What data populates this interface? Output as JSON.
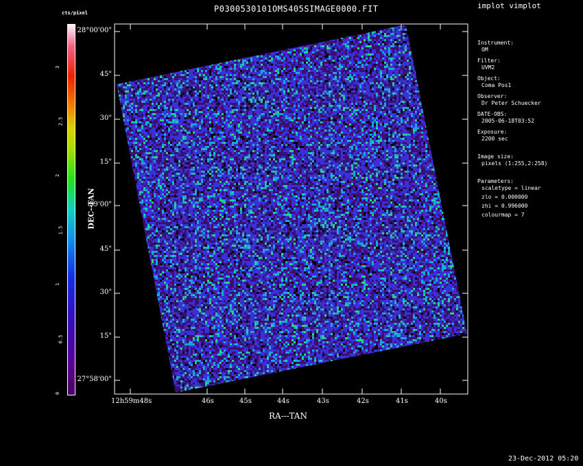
{
  "header": {
    "title": "P0300530101OMS405SIMAGE0000.FIT",
    "app_name": "implot vimplot"
  },
  "colorbar": {
    "unit_label": "cts/pixel",
    "ticks": [
      "0",
      "0.5",
      "1",
      "1.5",
      "2",
      "2.5",
      "3"
    ]
  },
  "axes": {
    "xlabel": "RA---TAN",
    "ylabel": "DEC--TAN",
    "x_ticks": [
      "12h59m48s",
      "46s",
      "45s",
      "44s",
      "43s",
      "42s",
      "41s",
      "40s"
    ],
    "y_ticks": [
      "28°00'00\"",
      "45\"",
      "30\"",
      "15\"",
      "59'00\"",
      "45\"",
      "30\"",
      "15\"",
      "27°58'00\""
    ]
  },
  "info": {
    "instrument_label": "Instrument:",
    "instrument": "OM",
    "filter_label": "Filter:",
    "filter": "UVM2",
    "object_label": "Object:",
    "object": "Coma Pos1",
    "observer_label": "Observer:",
    "observer": "Dr Peter Schuecker",
    "date_label": "DATE-OBS:",
    "date": "2005-06-18T03:52",
    "exposure_label": "Exposure:",
    "exposure": "2200 sec",
    "image_size_label": "Image size:",
    "image_size": "pixels (1:255,2:258)",
    "parameters_label": "Parameters:",
    "scaletype": "scaletype = linear",
    "zlo": "zlo = 0.000000",
    "zhi": "zhi = 0.996000",
    "colourmap": "colourmap =   7"
  },
  "footer": {
    "timestamp": "23-Dec-2012 05:20"
  },
  "colors": {
    "background": "#000000",
    "foreground": "#ffffff",
    "noise_dark": "#3a0f70",
    "noise_blue": "#3a2fd8",
    "noise_cyan": "#1aa6d8",
    "noise_green": "#1fd88a",
    "noise_black": "#000000"
  }
}
